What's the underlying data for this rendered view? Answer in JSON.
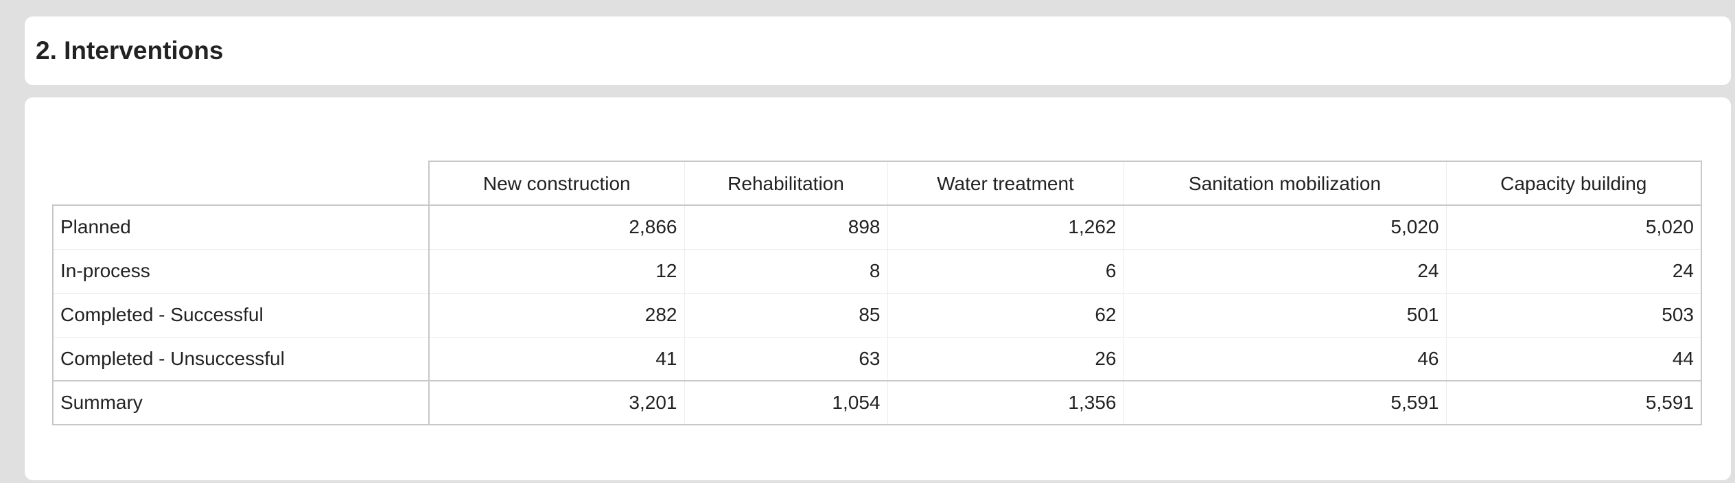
{
  "header": {
    "title": "2. Interventions"
  },
  "table": {
    "columns": [
      "New construction",
      "Rehabilitation",
      "Water treatment",
      "Sanitation mobilization",
      "Capacity building"
    ],
    "rows": [
      {
        "label": "Planned",
        "values": [
          "2,866",
          "898",
          "1,262",
          "5,020",
          "5,020"
        ]
      },
      {
        "label": "In-process",
        "values": [
          "12",
          "8",
          "6",
          "24",
          "24"
        ]
      },
      {
        "label": "Completed - Successful",
        "values": [
          "282",
          "85",
          "62",
          "501",
          "503"
        ]
      },
      {
        "label": "Completed - Unsuccessful",
        "values": [
          "41",
          "63",
          "26",
          "46",
          "44"
        ]
      }
    ],
    "summary": {
      "label": "Summary",
      "values": [
        "3,201",
        "1,054",
        "1,356",
        "5,591",
        "5,591"
      ]
    }
  }
}
